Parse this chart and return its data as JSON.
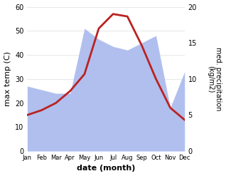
{
  "months": [
    "Jan",
    "Feb",
    "Mar",
    "Apr",
    "May",
    "Jun",
    "Jul",
    "Aug",
    "Sep",
    "Oct",
    "Nov",
    "Dec"
  ],
  "temperature": [
    15,
    17,
    20,
    25,
    32,
    51,
    57,
    56,
    44,
    30,
    18,
    13
  ],
  "precipitation": [
    9,
    8.5,
    8,
    8,
    17,
    15.5,
    14.5,
    14,
    15,
    16,
    6,
    11
  ],
  "temp_ylim": [
    0,
    60
  ],
  "precip_ylim": [
    0,
    20
  ],
  "temp_color": "#bb2222",
  "precip_fill_color": "#b0bfee",
  "xlabel": "date (month)",
  "ylabel_left": "max temp (C)",
  "ylabel_right": "med. precipitation\n(kg/m2)",
  "label_fontsize": 8,
  "tick_fontsize": 7,
  "line_width": 2.0,
  "background_color": "#ffffff",
  "scale_factor": 3.0
}
